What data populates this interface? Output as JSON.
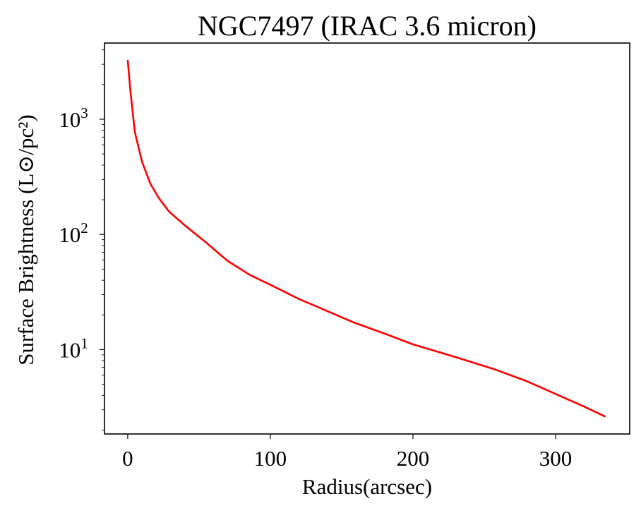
{
  "chart_data": {
    "type": "line",
    "title": "NGC7497 (IRAC 3.6 micron)",
    "xlabel": "Radius(arcsec)",
    "ylabel": "Surface Brightness (L⊙/pc²)",
    "xscale": "linear",
    "yscale": "log",
    "xlim": [
      -16.3,
      352
    ],
    "ylim": [
      1.85,
      4590
    ],
    "xticks": [
      0,
      100,
      200,
      300
    ],
    "xtick_labels": [
      "0",
      "100",
      "200",
      "300"
    ],
    "yticks": [
      10,
      100,
      1000
    ],
    "ytick_labels": [
      "10^1",
      "10^2",
      "10^3"
    ],
    "grid": false,
    "legend": "none",
    "series": [
      {
        "name": "NGC7497",
        "color": "#ff0000",
        "x": [
          0,
          2,
          5,
          10,
          15.8,
          22,
          29,
          40,
          55,
          70,
          85,
          100,
          108,
          120,
          133,
          158,
          180,
          200,
          230,
          257,
          280,
          300,
          320,
          335
        ],
        "y": [
          3270,
          1700,
          776,
          430,
          277,
          205,
          158,
          120,
          85,
          59,
          45,
          36.5,
          32.6,
          27.5,
          23.5,
          17.3,
          13.8,
          11.1,
          8.6,
          6.76,
          5.3,
          4.12,
          3.2,
          2.61
        ]
      }
    ]
  }
}
